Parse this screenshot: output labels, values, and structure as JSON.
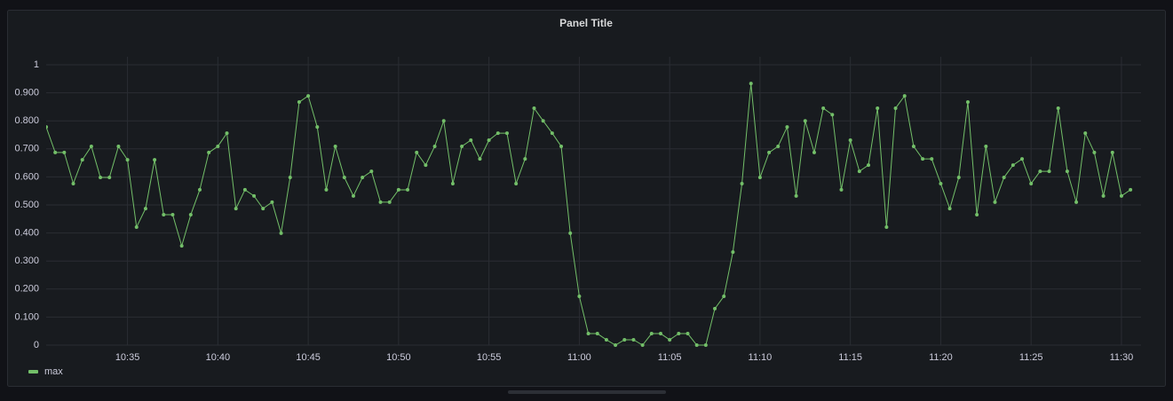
{
  "chart_data": {
    "type": "line",
    "title": "Panel Title",
    "x": [
      "10:30:30",
      "10:31:00",
      "10:31:30",
      "10:32:00",
      "10:32:30",
      "10:33:00",
      "10:33:30",
      "10:34:00",
      "10:34:30",
      "10:35:00",
      "10:35:30",
      "10:36:00",
      "10:36:30",
      "10:37:00",
      "10:37:30",
      "10:38:00",
      "10:38:30",
      "10:39:00",
      "10:39:30",
      "10:40:00",
      "10:40:30",
      "10:41:00",
      "10:41:30",
      "10:42:00",
      "10:42:30",
      "10:43:00",
      "10:43:30",
      "10:44:00",
      "10:44:30",
      "10:45:00",
      "10:45:30",
      "10:46:00",
      "10:46:30",
      "10:47:00",
      "10:47:30",
      "10:48:00",
      "10:48:30",
      "10:49:00",
      "10:49:30",
      "10:50:00",
      "10:50:30",
      "10:51:00",
      "10:51:30",
      "10:52:00",
      "10:52:30",
      "10:53:00",
      "10:53:30",
      "10:54:00",
      "10:54:30",
      "10:55:00",
      "10:55:30",
      "10:56:00",
      "10:56:30",
      "10:57:00",
      "10:57:30",
      "10:58:00",
      "10:58:30",
      "10:59:00",
      "10:59:30",
      "11:00:00",
      "11:00:30",
      "11:01:00",
      "11:01:30",
      "11:02:00",
      "11:02:30",
      "11:03:00",
      "11:03:30",
      "11:04:00",
      "11:04:30",
      "11:05:00",
      "11:05:30",
      "11:06:00",
      "11:06:30",
      "11:07:00",
      "11:07:30",
      "11:08:00",
      "11:08:30",
      "11:09:00",
      "11:09:30",
      "11:10:00",
      "11:10:30",
      "11:11:00",
      "11:11:30",
      "11:12:00",
      "11:12:30",
      "11:13:00",
      "11:13:30",
      "11:14:00",
      "11:14:30",
      "11:15:00",
      "11:15:30",
      "11:16:00",
      "11:16:30",
      "11:17:00",
      "11:17:30",
      "11:18:00",
      "11:18:30",
      "11:19:00",
      "11:19:30",
      "11:20:00",
      "11:20:30",
      "11:21:00",
      "11:21:30",
      "11:22:00",
      "11:22:30",
      "11:23:00",
      "11:23:30",
      "11:24:00",
      "11:24:30",
      "11:25:00",
      "11:25:30",
      "11:26:00",
      "11:26:30",
      "11:27:00",
      "11:27:30",
      "11:28:00",
      "11:28:30",
      "11:29:00",
      "11:29:30",
      "11:30:00",
      "11:30:30"
    ],
    "series": [
      {
        "name": "max",
        "color": "#73bf69",
        "values": [
          0.778,
          0.687,
          0.687,
          0.576,
          0.661,
          0.709,
          0.598,
          0.598,
          0.709,
          0.661,
          0.421,
          0.487,
          0.661,
          0.465,
          0.465,
          0.354,
          0.465,
          0.554,
          0.687,
          0.709,
          0.756,
          0.487,
          0.554,
          0.532,
          0.487,
          0.51,
          0.399,
          0.598,
          0.867,
          0.889,
          0.778,
          0.554,
          0.709,
          0.598,
          0.532,
          0.598,
          0.62,
          0.51,
          0.51,
          0.554,
          0.554,
          0.687,
          0.642,
          0.709,
          0.8,
          0.576,
          0.709,
          0.731,
          0.664,
          0.731,
          0.756,
          0.756,
          0.576,
          0.664,
          0.845,
          0.8,
          0.756,
          0.709,
          0.399,
          0.174,
          0.041,
          0.041,
          0.019,
          0,
          0.019,
          0.019,
          0,
          0.041,
          0.041,
          0.019,
          0.041,
          0.041,
          0,
          0,
          0.13,
          0.174,
          0.332,
          0.576,
          0.933,
          0.598,
          0.687,
          0.709,
          0.778,
          0.532,
          0.8,
          0.687,
          0.845,
          0.822,
          0.554,
          0.731,
          0.62,
          0.642,
          0.845,
          0.421,
          0.845,
          0.889,
          0.709,
          0.664,
          0.664,
          0.576,
          0.487,
          0.598,
          0.867,
          0.465,
          0.709,
          0.51,
          0.598,
          0.642,
          0.664,
          0.576,
          0.62,
          0.62,
          0.845,
          0.62,
          0.51,
          0.756,
          0.687,
          0.532,
          0.687,
          0.532,
          0.554
        ]
      }
    ],
    "xlim": [
      "10:30:30",
      "11:31:05"
    ],
    "xticks": [
      "10:35",
      "10:40",
      "10:45",
      "10:50",
      "10:55",
      "11:00",
      "11:05",
      "11:10",
      "11:15",
      "11:20",
      "11:25",
      "11:30"
    ],
    "ylim": [
      0,
      1
    ],
    "yticks": [
      0,
      {
        "value": 0.1,
        "label": "0.100"
      },
      {
        "value": 0.2,
        "label": "0.200"
      },
      {
        "value": 0.3,
        "label": "0.300"
      },
      {
        "value": 0.4,
        "label": "0.400"
      },
      {
        "value": 0.5,
        "label": "0.500"
      },
      {
        "value": 0.6,
        "label": "0.600"
      },
      {
        "value": 0.7,
        "label": "0.700"
      },
      {
        "value": 0.8,
        "label": "0.800"
      },
      {
        "value": 0.9,
        "label": "0.900"
      },
      1
    ],
    "grid": true,
    "legend": "bottom-left"
  }
}
